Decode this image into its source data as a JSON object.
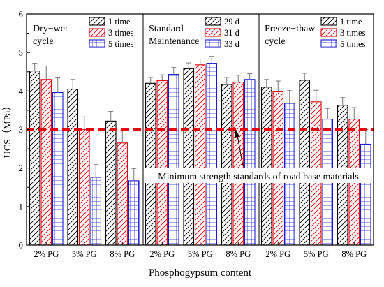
{
  "chart_data": {
    "type": "bar",
    "xlabel": "Phosphogypsum content",
    "ylabel": "UCS（MPa）",
    "ylim": [
      0,
      6
    ],
    "yticks": [
      "0",
      "1",
      "2",
      "3",
      "4",
      "5",
      "6"
    ],
    "grid": false,
    "reference_line": {
      "value": 3,
      "color": "#e8000b"
    },
    "annotation": "Minimum strength standards of road base materials",
    "groups": [
      {
        "title_lines": [
          "Dry−wet",
          "cycle"
        ],
        "categories": [
          "2% PG",
          "5% PG",
          "8% PG"
        ],
        "series": [
          {
            "name": "1 time",
            "values": [
              4.52,
              4.05,
              3.22
            ],
            "errors": [
              0.2,
              0.25,
              0.25
            ]
          },
          {
            "name": "3 times",
            "values": [
              4.3,
              3.0,
              2.65
            ],
            "errors": [
              0.35,
              0.33,
              0.32
            ]
          },
          {
            "name": "5 times",
            "values": [
              3.96,
              1.76,
              1.67
            ],
            "errors": [
              0.4,
              0.33,
              0.32
            ]
          }
        ]
      },
      {
        "title_lines": [
          "Standard",
          "Maintenance"
        ],
        "categories": [
          "2% PG",
          "5% PG",
          "8% PG"
        ],
        "series": [
          {
            "name": "29 d",
            "values": [
              4.2,
              4.58,
              4.17
            ],
            "errors": [
              0.15,
              0.15,
              0.18
            ]
          },
          {
            "name": "31 d",
            "values": [
              4.27,
              4.68,
              4.23
            ],
            "errors": [
              0.15,
              0.15,
              0.18
            ]
          },
          {
            "name": "33 d",
            "values": [
              4.43,
              4.72,
              4.3
            ],
            "errors": [
              0.18,
              0.18,
              0.15
            ]
          }
        ]
      },
      {
        "title_lines": [
          "Freeze−thaw",
          "cycle"
        ],
        "categories": [
          "2% PG",
          "5% PG",
          "8% PG"
        ],
        "series": [
          {
            "name": "1 time",
            "values": [
              4.1,
              4.28,
              3.63
            ],
            "errors": [
              0.2,
              0.18,
              0.2
            ]
          },
          {
            "name": "3 times",
            "values": [
              3.98,
              3.72,
              3.27
            ],
            "errors": [
              0.28,
              0.3,
              0.3
            ]
          },
          {
            "name": "5 times",
            "values": [
              3.68,
              3.27,
              2.62
            ],
            "errors": [
              0.33,
              0.28,
              0.38
            ]
          }
        ]
      }
    ],
    "colors": {
      "series1": "#000000",
      "series2": "#e8000b",
      "series3": "#1a1ad6",
      "reference": "#e8000b"
    }
  }
}
